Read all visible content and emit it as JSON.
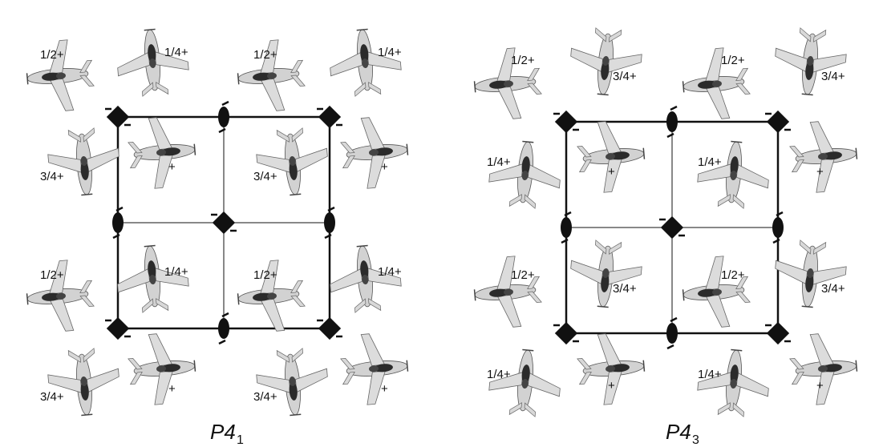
{
  "panels": [
    {
      "caption_main": "P4",
      "caption_sub": "1",
      "labels": [
        "1/2+",
        "1/4+",
        "1/2+",
        "1/4+",
        "3/4+",
        "+",
        "3/4+",
        "+",
        "1/2+",
        "1/4+",
        "1/2+",
        "1/4+",
        "3/4+",
        "+",
        "3/4+",
        "+"
      ]
    },
    {
      "caption_main": "P4",
      "caption_sub": "3",
      "labels": [
        "1/2+",
        "3/4+",
        "1/2+",
        "3/4+",
        "1/4+",
        "+",
        "1/4+",
        "+",
        "1/2+",
        "3/4+",
        "1/2+",
        "3/4+",
        "1/4+",
        "+",
        "1/4+",
        "+"
      ]
    }
  ],
  "symbols": {
    "fourfold": "fourfold-screw-axis-icon",
    "twofold": "twofold-screw-axis-icon",
    "aircraft": "airplane-icon"
  },
  "colors": {
    "line": "#111111",
    "plane": "#cfcfcf",
    "plane_dark": "#2b2b2b"
  }
}
